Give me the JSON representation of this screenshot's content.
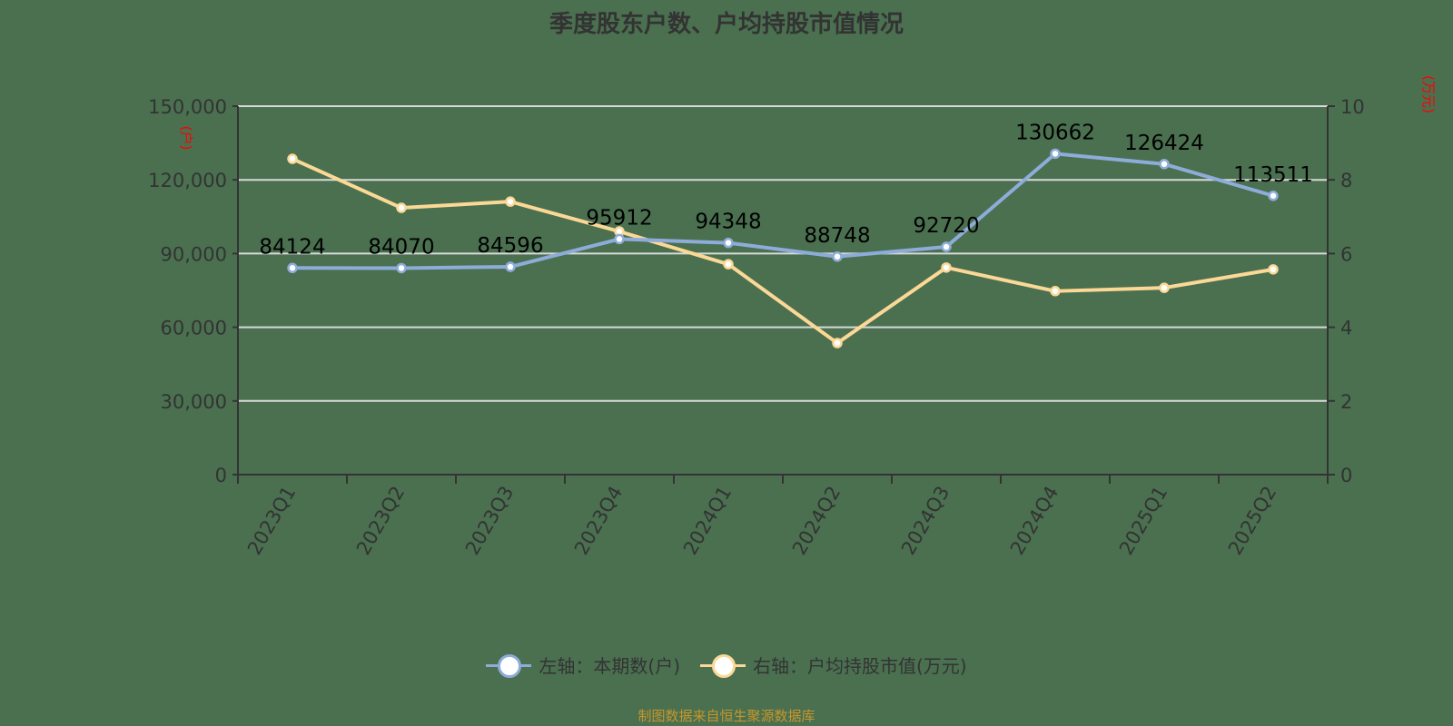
{
  "title": "季度股东户数、户均持股市值情况",
  "left_axis_unit": "(户)",
  "right_axis_unit": "(万元)",
  "legend": [
    {
      "label": "左轴：本期数(户)",
      "color": "#8eacd9"
    },
    {
      "label": "右轴：户均持股市值(万元)",
      "color": "#fbd896"
    }
  ],
  "source": "制图数据来自恒生聚源数据库",
  "chart_data": {
    "type": "line",
    "title": "季度股东户数、户均持股市值情况",
    "categories": [
      "2023Q1",
      "2023Q2",
      "2023Q3",
      "2023Q4",
      "2024Q1",
      "2024Q2",
      "2024Q3",
      "2024Q4",
      "2025Q1",
      "2025Q2"
    ],
    "series": [
      {
        "name": "左轴：本期数(户)",
        "axis": "left",
        "color": "#8eacd9",
        "values": [
          84124,
          84070,
          84596,
          95912,
          94348,
          88748,
          92720,
          130662,
          126424,
          113511
        ],
        "data_labels": true
      },
      {
        "name": "右轴：户均持股市值(万元)",
        "axis": "right",
        "color": "#fbd896",
        "values": [
          8.57,
          7.24,
          7.41,
          6.6,
          5.71,
          3.57,
          5.62,
          4.98,
          5.07,
          5.57
        ],
        "data_labels": false
      }
    ],
    "left_axis": {
      "label": "(户)",
      "ylim": [
        0,
        150000
      ],
      "ticks": [
        "0",
        "30,000",
        "60,000",
        "90,000",
        "120,000",
        "150,000"
      ]
    },
    "right_axis": {
      "label": "(万元)",
      "ylim": [
        0,
        10
      ],
      "ticks": [
        "0",
        "2",
        "4",
        "6",
        "8",
        "10"
      ]
    },
    "xlabel": "",
    "grid": true,
    "legend_position": "bottom"
  }
}
